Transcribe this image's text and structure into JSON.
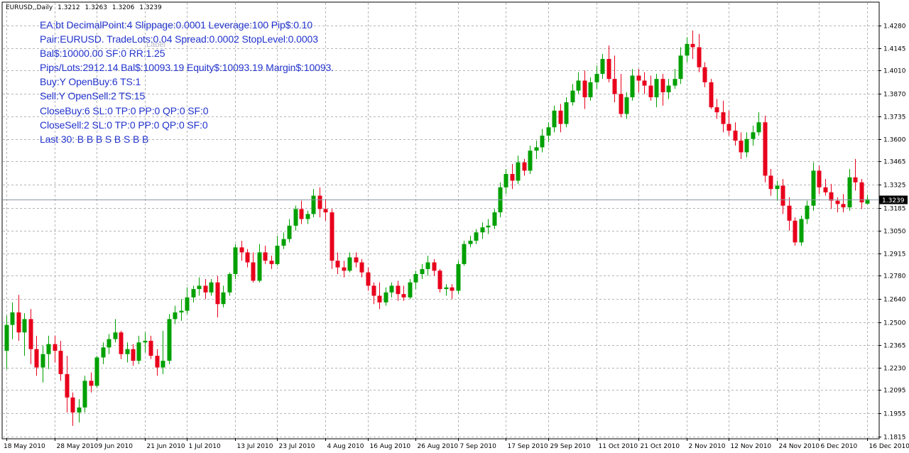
{
  "chart_data": {
    "type": "candlestick",
    "symbol": "EURUSD,,Daily",
    "ohlc_header": [
      "1.3212",
      "1.3263",
      "1.3206",
      "1.3239"
    ],
    "current_price": "1.3239",
    "ylim": [
      1.18,
      1.4375
    ],
    "grid": true,
    "y_ticks": [
      "1.4280",
      "1.4145",
      "1.4010",
      "1.3870",
      "1.3735",
      "1.3600",
      "1.3465",
      "1.3325",
      "1.3185",
      "1.3050",
      "1.2915",
      "1.2780",
      "1.2640",
      "1.2500",
      "1.2365",
      "1.2230",
      "1.2095",
      "1.1955",
      "1.1815"
    ],
    "x_ticks": [
      "18 May 2010",
      "28 May 2010",
      "9 Jun 2010",
      "21 Jun 2010",
      "1 Jul 2010",
      "13 Jul 2010",
      "23 Jul 2010",
      "4 Aug 2010",
      "16 Aug 2010",
      "26 Aug 2010",
      "7 Sep 2010",
      "17 Sep 2010",
      "29 Sep 2010",
      "11 Oct 2010",
      "21 Oct 2010",
      "2 Nov 2010",
      "12 Nov 2010",
      "24 Nov 2010",
      "6 Dec 2010",
      "16 Dec 2010"
    ],
    "candles": [
      [
        1.233,
        1.254,
        1.222,
        1.2485
      ],
      [
        1.2485,
        1.262,
        1.24,
        1.256
      ],
      [
        1.256,
        1.2665,
        1.239,
        1.244
      ],
      [
        1.244,
        1.2555,
        1.23,
        1.252
      ],
      [
        1.252,
        1.258,
        1.225,
        1.234
      ],
      [
        1.234,
        1.242,
        1.218,
        1.223
      ],
      [
        1.223,
        1.236,
        1.214,
        1.231
      ],
      [
        1.231,
        1.242,
        1.222,
        1.237
      ],
      [
        1.237,
        1.242,
        1.226,
        1.233
      ],
      [
        1.233,
        1.239,
        1.215,
        1.219
      ],
      [
        1.219,
        1.23,
        1.196,
        1.205
      ],
      [
        1.205,
        1.208,
        1.188,
        1.196
      ],
      [
        1.196,
        1.204,
        1.19,
        1.199
      ],
      [
        1.199,
        1.218,
        1.196,
        1.215
      ],
      [
        1.215,
        1.22,
        1.208,
        1.212
      ],
      [
        1.212,
        1.23,
        1.211,
        1.229
      ],
      [
        1.229,
        1.238,
        1.225,
        1.235
      ],
      [
        1.235,
        1.243,
        1.231,
        1.24
      ],
      [
        1.24,
        1.252,
        1.238,
        1.244
      ],
      [
        1.244,
        1.245,
        1.228,
        1.231
      ],
      [
        1.231,
        1.238,
        1.226,
        1.234
      ],
      [
        1.234,
        1.237,
        1.224,
        1.227
      ],
      [
        1.227,
        1.242,
        1.225,
        1.238
      ],
      [
        1.238,
        1.244,
        1.232,
        1.239
      ],
      [
        1.239,
        1.242,
        1.228,
        1.23
      ],
      [
        1.23,
        1.234,
        1.218,
        1.223
      ],
      [
        1.223,
        1.245,
        1.219,
        1.227
      ],
      [
        1.227,
        1.255,
        1.225,
        1.252
      ],
      [
        1.252,
        1.26,
        1.249,
        1.256
      ],
      [
        1.256,
        1.264,
        1.251,
        1.257
      ],
      [
        1.257,
        1.271,
        1.255,
        1.265
      ],
      [
        1.265,
        1.272,
        1.262,
        1.27
      ],
      [
        1.27,
        1.277,
        1.266,
        1.272
      ],
      [
        1.272,
        1.276,
        1.264,
        1.268
      ],
      [
        1.268,
        1.276,
        1.266,
        1.274
      ],
      [
        1.274,
        1.278,
        1.253,
        1.261
      ],
      [
        1.261,
        1.272,
        1.259,
        1.268
      ],
      [
        1.268,
        1.28,
        1.266,
        1.279
      ],
      [
        1.279,
        1.297,
        1.276,
        1.295
      ],
      [
        1.295,
        1.299,
        1.287,
        1.292
      ],
      [
        1.292,
        1.294,
        1.283,
        1.286
      ],
      [
        1.286,
        1.292,
        1.274,
        1.275
      ],
      [
        1.275,
        1.297,
        1.274,
        1.292
      ],
      [
        1.292,
        1.296,
        1.285,
        1.287
      ],
      [
        1.287,
        1.29,
        1.282,
        1.285
      ],
      [
        1.285,
        1.302,
        1.284,
        1.296
      ],
      [
        1.296,
        1.304,
        1.294,
        1.3
      ],
      [
        1.3,
        1.312,
        1.298,
        1.308
      ],
      [
        1.308,
        1.32,
        1.305,
        1.318
      ],
      [
        1.318,
        1.323,
        1.309,
        1.312
      ],
      [
        1.312,
        1.317,
        1.309,
        1.315
      ],
      [
        1.315,
        1.33,
        1.313,
        1.326
      ],
      [
        1.326,
        1.331,
        1.313,
        1.318
      ],
      [
        1.318,
        1.324,
        1.311,
        1.316
      ],
      [
        1.316,
        1.318,
        1.282,
        1.287
      ],
      [
        1.287,
        1.292,
        1.279,
        1.283
      ],
      [
        1.283,
        1.287,
        1.277,
        1.281
      ],
      [
        1.281,
        1.292,
        1.28,
        1.289
      ],
      [
        1.289,
        1.292,
        1.283,
        1.286
      ],
      [
        1.286,
        1.288,
        1.277,
        1.28
      ],
      [
        1.28,
        1.283,
        1.269,
        1.272
      ],
      [
        1.272,
        1.274,
        1.261,
        1.266
      ],
      [
        1.266,
        1.274,
        1.258,
        1.262
      ],
      [
        1.262,
        1.271,
        1.26,
        1.268
      ],
      [
        1.268,
        1.274,
        1.265,
        1.272
      ],
      [
        1.272,
        1.275,
        1.263,
        1.267
      ],
      [
        1.267,
        1.272,
        1.263,
        1.265
      ],
      [
        1.265,
        1.276,
        1.264,
        1.274
      ],
      [
        1.274,
        1.281,
        1.27,
        1.279
      ],
      [
        1.279,
        1.285,
        1.276,
        1.282
      ],
      [
        1.282,
        1.29,
        1.278,
        1.286
      ],
      [
        1.286,
        1.288,
        1.278,
        1.281
      ],
      [
        1.281,
        1.282,
        1.268,
        1.27
      ],
      [
        1.27,
        1.273,
        1.266,
        1.271
      ],
      [
        1.271,
        1.273,
        1.264,
        1.269
      ],
      [
        1.269,
        1.287,
        1.267,
        1.285
      ],
      [
        1.285,
        1.299,
        1.284,
        1.297
      ],
      [
        1.297,
        1.302,
        1.295,
        1.299
      ],
      [
        1.299,
        1.306,
        1.297,
        1.304
      ],
      [
        1.304,
        1.31,
        1.3,
        1.307
      ],
      [
        1.307,
        1.312,
        1.303,
        1.308
      ],
      [
        1.308,
        1.318,
        1.306,
        1.316
      ],
      [
        1.316,
        1.334,
        1.313,
        1.331
      ],
      [
        1.331,
        1.342,
        1.327,
        1.339
      ],
      [
        1.339,
        1.345,
        1.33,
        1.335
      ],
      [
        1.335,
        1.35,
        1.333,
        1.346
      ],
      [
        1.346,
        1.348,
        1.338,
        1.341
      ],
      [
        1.341,
        1.356,
        1.339,
        1.353
      ],
      [
        1.353,
        1.359,
        1.348,
        1.355
      ],
      [
        1.355,
        1.366,
        1.352,
        1.362
      ],
      [
        1.362,
        1.37,
        1.358,
        1.367
      ],
      [
        1.367,
        1.38,
        1.364,
        1.377
      ],
      [
        1.377,
        1.381,
        1.364,
        1.369
      ],
      [
        1.369,
        1.385,
        1.367,
        1.382
      ],
      [
        1.382,
        1.393,
        1.38,
        1.389
      ],
      [
        1.389,
        1.4,
        1.387,
        1.395
      ],
      [
        1.395,
        1.401,
        1.378,
        1.385
      ],
      [
        1.385,
        1.397,
        1.383,
        1.394
      ],
      [
        1.394,
        1.404,
        1.39,
        1.399
      ],
      [
        1.399,
        1.411,
        1.396,
        1.408
      ],
      [
        1.408,
        1.416,
        1.394,
        1.396
      ],
      [
        1.396,
        1.41,
        1.382,
        1.387
      ],
      [
        1.387,
        1.399,
        1.373,
        1.375
      ],
      [
        1.375,
        1.388,
        1.372,
        1.385
      ],
      [
        1.385,
        1.402,
        1.383,
        1.398
      ],
      [
        1.398,
        1.402,
        1.388,
        1.395
      ],
      [
        1.395,
        1.4,
        1.387,
        1.392
      ],
      [
        1.392,
        1.398,
        1.383,
        1.385
      ],
      [
        1.385,
        1.399,
        1.379,
        1.396
      ],
      [
        1.396,
        1.399,
        1.38,
        1.388
      ],
      [
        1.388,
        1.396,
        1.384,
        1.392
      ],
      [
        1.392,
        1.402,
        1.39,
        1.396
      ],
      [
        1.396,
        1.415,
        1.393,
        1.41
      ],
      [
        1.41,
        1.421,
        1.406,
        1.417
      ],
      [
        1.417,
        1.425,
        1.408,
        1.415
      ],
      [
        1.415,
        1.423,
        1.4,
        1.403
      ],
      [
        1.403,
        1.406,
        1.391,
        1.394
      ],
      [
        1.394,
        1.396,
        1.378,
        1.379
      ],
      [
        1.379,
        1.384,
        1.372,
        1.376
      ],
      [
        1.376,
        1.383,
        1.364,
        1.369
      ],
      [
        1.369,
        1.377,
        1.362,
        1.365
      ],
      [
        1.365,
        1.37,
        1.356,
        1.359
      ],
      [
        1.359,
        1.364,
        1.348,
        1.352
      ],
      [
        1.352,
        1.364,
        1.349,
        1.36
      ],
      [
        1.36,
        1.368,
        1.356,
        1.364
      ],
      [
        1.364,
        1.376,
        1.362,
        1.37
      ],
      [
        1.37,
        1.374,
        1.334,
        1.338
      ],
      [
        1.338,
        1.342,
        1.326,
        1.33
      ],
      [
        1.33,
        1.335,
        1.323,
        1.332
      ],
      [
        1.332,
        1.336,
        1.315,
        1.32
      ],
      [
        1.32,
        1.325,
        1.305,
        1.311
      ],
      [
        1.311,
        1.313,
        1.296,
        1.298
      ],
      [
        1.298,
        1.314,
        1.296,
        1.312
      ],
      [
        1.312,
        1.323,
        1.309,
        1.32
      ],
      [
        1.32,
        1.346,
        1.317,
        1.341
      ],
      [
        1.341,
        1.344,
        1.327,
        1.331
      ],
      [
        1.331,
        1.336,
        1.326,
        1.328
      ],
      [
        1.328,
        1.333,
        1.318,
        1.323
      ],
      [
        1.323,
        1.325,
        1.316,
        1.321
      ],
      [
        1.321,
        1.327,
        1.316,
        1.319
      ],
      [
        1.319,
        1.342,
        1.317,
        1.337
      ],
      [
        1.337,
        1.348,
        1.329,
        1.334
      ],
      [
        1.334,
        1.336,
        1.318,
        1.322
      ],
      [
        1.3212,
        1.3263,
        1.3206,
        1.3239
      ]
    ],
    "up_color": "#00a000",
    "down_color": "#e8001c"
  },
  "overlay_lines": [
    "EA:bt DecimalPoint:4 Slippage:0.0001 Leverage:100 Pip$:0.10",
    "Pair:EURUSD. TradeLots:0.04 Spread:0.0002 StopLevel:0.0003",
    "Bal$:10000.00 SF:0 RR:1.25",
    "Pips/Lots:2912.14 Bal$:10093.19 Equity$:10093.19 Margin$:10093.",
    "Buy:Y OpenBuy:6 TS:1",
    "Sell:Y OpenSell:2 TS:15",
    "CloseBuy:6 SL:0 TP:0 PP:0 QP:0 SF:0",
    "CloseSell:2 SL:0 TP:0 PP:0 QP:0 SF:0",
    "Last 30: B B B S B S B B"
  ],
  "label_text": "Label",
  "colors": {
    "grid": "#b4b4b4",
    "text": "#2233cc",
    "price_line": "#8c9aa6",
    "price_box": "#000000"
  }
}
